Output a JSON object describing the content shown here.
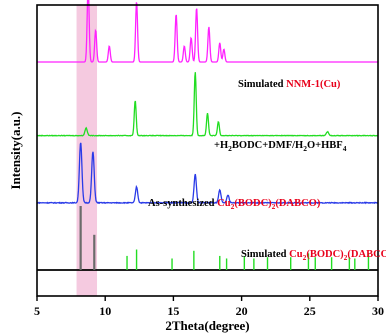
{
  "chart_data": {
    "type": "line",
    "xlabel": "2Theta(degree)",
    "ylabel": "Intensity(a.u.)",
    "xlim": [
      5,
      30
    ],
    "xticks": [
      "5",
      "10",
      "15",
      "20",
      "25",
      "30"
    ],
    "highlight_band": {
      "x_range": [
        7.9,
        9.4
      ],
      "color": "#f2b8d6"
    },
    "series": [
      {
        "id": "sim-cu-bodc-dabco",
        "label_parts": [
          {
            "text": "Simulated ",
            "color": "#000000"
          },
          {
            "text": "Cu",
            "color": "#e8001a"
          },
          {
            "text": "2",
            "color": "#e8001a",
            "sub": true
          },
          {
            "text": "(BODC)",
            "color": "#e8001a"
          },
          {
            "text": "2",
            "color": "#e8001a",
            "sub": true
          },
          {
            "text": "(DABCO)",
            "color": "#e8001a"
          }
        ],
        "color": "#000000",
        "baseline_level": 0,
        "noise": 0,
        "peaks": [],
        "sticks": [
          {
            "x": 8.2,
            "h": 1.0,
            "color": "#6b6b6b"
          },
          {
            "x": 9.2,
            "h": 0.55,
            "color": "#6b6b6b"
          },
          {
            "x": 11.6,
            "h": 0.22,
            "color": "#22dd22"
          },
          {
            "x": 12.3,
            "h": 0.32,
            "color": "#22dd22"
          },
          {
            "x": 14.9,
            "h": 0.18,
            "color": "#22dd22"
          },
          {
            "x": 16.5,
            "h": 0.3,
            "color": "#22dd22"
          },
          {
            "x": 18.4,
            "h": 0.22,
            "color": "#22dd22"
          },
          {
            "x": 18.9,
            "h": 0.18,
            "color": "#22dd22"
          },
          {
            "x": 20.2,
            "h": 0.22,
            "color": "#22dd22"
          },
          {
            "x": 20.9,
            "h": 0.18,
            "color": "#22dd22"
          },
          {
            "x": 21.9,
            "h": 0.2,
            "color": "#22dd22"
          },
          {
            "x": 23.6,
            "h": 0.2,
            "color": "#22dd22"
          },
          {
            "x": 24.9,
            "h": 0.26,
            "color": "#22dd22"
          },
          {
            "x": 25.4,
            "h": 0.2,
            "color": "#22dd22"
          },
          {
            "x": 26.6,
            "h": 0.2,
            "color": "#22dd22"
          },
          {
            "x": 27.9,
            "h": 0.2,
            "color": "#22dd22"
          },
          {
            "x": 28.3,
            "h": 0.18,
            "color": "#22dd22"
          },
          {
            "x": 29.3,
            "h": 0.26,
            "color": "#22dd22"
          }
        ]
      },
      {
        "id": "as-synthesized",
        "label_parts": [
          {
            "text": "As-synthesized ",
            "color": "#000000"
          },
          {
            "text": "Cu",
            "color": "#e8001a"
          },
          {
            "text": "2",
            "color": "#e8001a",
            "sub": true
          },
          {
            "text": "(BODC)",
            "color": "#e8001a"
          },
          {
            "text": "2",
            "color": "#e8001a",
            "sub": true
          },
          {
            "text": "(DABCO)",
            "color": "#e8001a"
          }
        ],
        "color": "#2a3be8",
        "baseline_level": 1.05,
        "noise": 0.012,
        "peaks": [
          {
            "x": 8.2,
            "h": 0.95,
            "w": 0.13
          },
          {
            "x": 9.1,
            "h": 0.8,
            "w": 0.13
          },
          {
            "x": 12.3,
            "h": 0.25,
            "w": 0.12
          },
          {
            "x": 16.6,
            "h": 0.45,
            "w": 0.12
          },
          {
            "x": 18.4,
            "h": 0.2,
            "w": 0.12
          },
          {
            "x": 19.0,
            "h": 0.12,
            "w": 0.12
          }
        ],
        "sticks": []
      },
      {
        "id": "h2bodc-mix",
        "label_parts": [
          {
            "text": "+H",
            "color": "#000000"
          },
          {
            "text": "2",
            "color": "#000000",
            "sub": true
          },
          {
            "text": "BODC+DMF/H",
            "color": "#000000"
          },
          {
            "text": "2",
            "color": "#000000",
            "sub": true
          },
          {
            "text": "O+HBF",
            "color": "#000000"
          },
          {
            "text": "4",
            "color": "#000000",
            "sub": true
          }
        ],
        "color": "#22dd22",
        "baseline_level": 2.1,
        "noise": 0.008,
        "peaks": [
          {
            "x": 8.6,
            "h": 0.12,
            "w": 0.12
          },
          {
            "x": 12.2,
            "h": 0.55,
            "w": 0.1
          },
          {
            "x": 16.6,
            "h": 1.0,
            "w": 0.1
          },
          {
            "x": 17.5,
            "h": 0.35,
            "w": 0.1
          },
          {
            "x": 18.3,
            "h": 0.22,
            "w": 0.1
          },
          {
            "x": 26.3,
            "h": 0.06,
            "w": 0.12
          }
        ],
        "sticks": []
      },
      {
        "id": "sim-nnm1",
        "label_parts": [
          {
            "text": "Simulated ",
            "color": "#000000"
          },
          {
            "text": "NNM-1(Cu)",
            "color": "#e8001a"
          }
        ],
        "color": "#ff22ff",
        "baseline_level": 3.25,
        "noise": 0,
        "peaks": [
          {
            "x": 8.75,
            "h": 1.2,
            "w": 0.1
          },
          {
            "x": 9.3,
            "h": 0.5,
            "w": 0.1
          },
          {
            "x": 10.3,
            "h": 0.25,
            "w": 0.1
          },
          {
            "x": 12.3,
            "h": 0.95,
            "w": 0.1
          },
          {
            "x": 15.2,
            "h": 0.75,
            "w": 0.1
          },
          {
            "x": 15.8,
            "h": 0.25,
            "w": 0.1
          },
          {
            "x": 16.3,
            "h": 0.38,
            "w": 0.1
          },
          {
            "x": 16.7,
            "h": 0.85,
            "w": 0.1
          },
          {
            "x": 17.6,
            "h": 0.55,
            "w": 0.1
          },
          {
            "x": 18.4,
            "h": 0.3,
            "w": 0.1
          },
          {
            "x": 18.7,
            "h": 0.2,
            "w": 0.1
          }
        ],
        "sticks": []
      }
    ]
  }
}
